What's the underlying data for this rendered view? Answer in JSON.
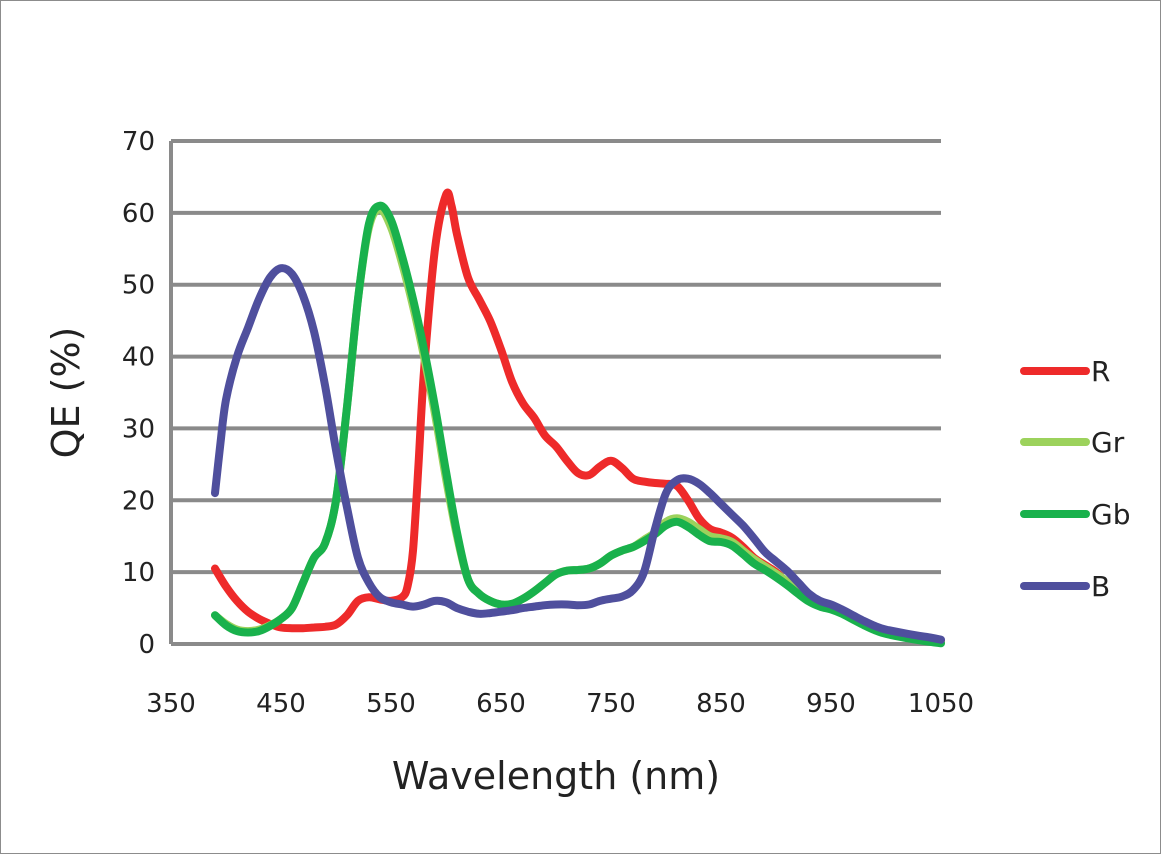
{
  "chart_data": {
    "type": "line",
    "title": "",
    "xlabel": "Wavelength (nm)",
    "ylabel": "QE (%)",
    "xlim": [
      350,
      1050
    ],
    "ylim": [
      0,
      70
    ],
    "x_ticks": [
      "350",
      "450",
      "550",
      "650",
      "750",
      "850",
      "950",
      "1050"
    ],
    "y_ticks": [
      "0",
      "10",
      "20",
      "30",
      "40",
      "50",
      "60",
      "70"
    ],
    "grid": "horizontal",
    "legend_position": "right",
    "series": [
      {
        "name": "R",
        "color": "#ee2a2a",
        "points": [
          [
            390,
            10.5
          ],
          [
            400,
            8
          ],
          [
            410,
            6
          ],
          [
            420,
            4.5
          ],
          [
            430,
            3.5
          ],
          [
            440,
            2.8
          ],
          [
            450,
            2.3
          ],
          [
            460,
            2.2
          ],
          [
            470,
            2.2
          ],
          [
            480,
            2.3
          ],
          [
            490,
            2.4
          ],
          [
            500,
            2.7
          ],
          [
            510,
            4
          ],
          [
            520,
            6
          ],
          [
            530,
            6.5
          ],
          [
            540,
            6.2
          ],
          [
            550,
            6
          ],
          [
            560,
            6.5
          ],
          [
            565,
            8
          ],
          [
            570,
            13
          ],
          [
            575,
            25
          ],
          [
            580,
            38
          ],
          [
            590,
            55
          ],
          [
            600,
            62.5
          ],
          [
            605,
            61
          ],
          [
            610,
            57
          ],
          [
            620,
            51
          ],
          [
            630,
            48
          ],
          [
            640,
            45
          ],
          [
            650,
            41
          ],
          [
            660,
            36.5
          ],
          [
            670,
            33.5
          ],
          [
            680,
            31.5
          ],
          [
            690,
            29
          ],
          [
            700,
            27.5
          ],
          [
            710,
            25.5
          ],
          [
            720,
            23.8
          ],
          [
            730,
            23.5
          ],
          [
            740,
            24.7
          ],
          [
            750,
            25.5
          ],
          [
            760,
            24.5
          ],
          [
            770,
            23
          ],
          [
            780,
            22.6
          ],
          [
            790,
            22.4
          ],
          [
            800,
            22.3
          ],
          [
            810,
            22
          ],
          [
            820,
            20
          ],
          [
            830,
            17.5
          ],
          [
            840,
            16
          ],
          [
            850,
            15.5
          ],
          [
            860,
            14.8
          ],
          [
            870,
            13.5
          ],
          [
            880,
            12
          ],
          [
            890,
            11
          ],
          [
            900,
            10
          ],
          [
            910,
            8.5
          ],
          [
            920,
            7.5
          ],
          [
            930,
            6.5
          ],
          [
            940,
            5.7
          ],
          [
            950,
            5.2
          ],
          [
            960,
            4.5
          ],
          [
            970,
            3.8
          ],
          [
            980,
            3
          ],
          [
            990,
            2.3
          ],
          [
            1000,
            1.8
          ],
          [
            1020,
            1.2
          ],
          [
            1040,
            0.8
          ],
          [
            1050,
            0.5
          ]
        ]
      },
      {
        "name": "Gr",
        "color": "#9cd25c",
        "points": [
          [
            390,
            4
          ],
          [
            400,
            2.8
          ],
          [
            410,
            2
          ],
          [
            420,
            1.8
          ],
          [
            430,
            2
          ],
          [
            440,
            2.6
          ],
          [
            450,
            3.5
          ],
          [
            460,
            5
          ],
          [
            470,
            8.5
          ],
          [
            480,
            12
          ],
          [
            490,
            14
          ],
          [
            500,
            20
          ],
          [
            510,
            33
          ],
          [
            520,
            48
          ],
          [
            530,
            58
          ],
          [
            540,
            60.5
          ],
          [
            550,
            58
          ],
          [
            560,
            53
          ],
          [
            570,
            47
          ],
          [
            580,
            40
          ],
          [
            590,
            32
          ],
          [
            600,
            23
          ],
          [
            610,
            15
          ],
          [
            620,
            9
          ],
          [
            630,
            7
          ],
          [
            640,
            6
          ],
          [
            650,
            5.5
          ],
          [
            660,
            5.6
          ],
          [
            670,
            6.3
          ],
          [
            680,
            7.3
          ],
          [
            690,
            8.5
          ],
          [
            700,
            9.7
          ],
          [
            710,
            10.2
          ],
          [
            720,
            10.3
          ],
          [
            730,
            10.5
          ],
          [
            740,
            11.2
          ],
          [
            750,
            12.3
          ],
          [
            760,
            13
          ],
          [
            770,
            13.5
          ],
          [
            780,
            14.5
          ],
          [
            790,
            15.5
          ],
          [
            800,
            17
          ],
          [
            810,
            17.5
          ],
          [
            820,
            17
          ],
          [
            830,
            16
          ],
          [
            840,
            15
          ],
          [
            850,
            14.7
          ],
          [
            860,
            14.2
          ],
          [
            870,
            13
          ],
          [
            880,
            11.8
          ],
          [
            890,
            10.8
          ],
          [
            900,
            9.8
          ],
          [
            910,
            8.7
          ],
          [
            920,
            7.5
          ],
          [
            930,
            6.2
          ],
          [
            940,
            5.5
          ],
          [
            950,
            5
          ],
          [
            960,
            4.4
          ],
          [
            970,
            3.6
          ],
          [
            980,
            2.7
          ],
          [
            990,
            2
          ],
          [
            1000,
            1.5
          ],
          [
            1020,
            0.9
          ],
          [
            1040,
            0.4
          ],
          [
            1050,
            0.2
          ]
        ]
      },
      {
        "name": "Gb",
        "color": "#19b14c",
        "points": [
          [
            390,
            4
          ],
          [
            400,
            2.6
          ],
          [
            410,
            1.8
          ],
          [
            420,
            1.6
          ],
          [
            430,
            1.8
          ],
          [
            440,
            2.5
          ],
          [
            450,
            3.5
          ],
          [
            460,
            5
          ],
          [
            470,
            8.5
          ],
          [
            480,
            12
          ],
          [
            490,
            14
          ],
          [
            500,
            20
          ],
          [
            510,
            33
          ],
          [
            520,
            48
          ],
          [
            530,
            58.5
          ],
          [
            540,
            61
          ],
          [
            550,
            59
          ],
          [
            560,
            54
          ],
          [
            570,
            48
          ],
          [
            580,
            41
          ],
          [
            590,
            33
          ],
          [
            600,
            24
          ],
          [
            610,
            15.5
          ],
          [
            620,
            9
          ],
          [
            630,
            7
          ],
          [
            640,
            6
          ],
          [
            650,
            5.5
          ],
          [
            660,
            5.6
          ],
          [
            670,
            6.3
          ],
          [
            680,
            7.3
          ],
          [
            690,
            8.5
          ],
          [
            700,
            9.7
          ],
          [
            710,
            10.2
          ],
          [
            720,
            10.3
          ],
          [
            730,
            10.5
          ],
          [
            740,
            11.2
          ],
          [
            750,
            12.3
          ],
          [
            760,
            13
          ],
          [
            770,
            13.5
          ],
          [
            780,
            14.3
          ],
          [
            790,
            15.3
          ],
          [
            800,
            16.5
          ],
          [
            810,
            17
          ],
          [
            820,
            16.3
          ],
          [
            830,
            15.2
          ],
          [
            840,
            14.3
          ],
          [
            850,
            14.2
          ],
          [
            860,
            13.7
          ],
          [
            870,
            12.5
          ],
          [
            880,
            11.2
          ],
          [
            890,
            10.3
          ],
          [
            900,
            9.3
          ],
          [
            910,
            8.2
          ],
          [
            920,
            7
          ],
          [
            930,
            5.9
          ],
          [
            940,
            5.2
          ],
          [
            950,
            4.8
          ],
          [
            960,
            4.2
          ],
          [
            970,
            3.4
          ],
          [
            980,
            2.6
          ],
          [
            990,
            1.9
          ],
          [
            1000,
            1.4
          ],
          [
            1020,
            0.8
          ],
          [
            1040,
            0.3
          ],
          [
            1050,
            0.1
          ]
        ]
      },
      {
        "name": "B",
        "color": "#4f4f9d",
        "points": [
          [
            390,
            21
          ],
          [
            395,
            28
          ],
          [
            400,
            34
          ],
          [
            410,
            40
          ],
          [
            420,
            44
          ],
          [
            430,
            48
          ],
          [
            440,
            51
          ],
          [
            450,
            52.3
          ],
          [
            460,
            51.5
          ],
          [
            470,
            48.5
          ],
          [
            480,
            43.5
          ],
          [
            490,
            36
          ],
          [
            500,
            27
          ],
          [
            510,
            19
          ],
          [
            520,
            12
          ],
          [
            530,
            8.5
          ],
          [
            540,
            6.5
          ],
          [
            550,
            5.8
          ],
          [
            560,
            5.5
          ],
          [
            570,
            5.2
          ],
          [
            580,
            5.5
          ],
          [
            590,
            6
          ],
          [
            600,
            5.8
          ],
          [
            610,
            5
          ],
          [
            620,
            4.5
          ],
          [
            630,
            4.2
          ],
          [
            640,
            4.3
          ],
          [
            650,
            4.5
          ],
          [
            660,
            4.7
          ],
          [
            670,
            5
          ],
          [
            680,
            5.2
          ],
          [
            690,
            5.4
          ],
          [
            700,
            5.5
          ],
          [
            710,
            5.5
          ],
          [
            720,
            5.4
          ],
          [
            730,
            5.5
          ],
          [
            740,
            6
          ],
          [
            750,
            6.3
          ],
          [
            760,
            6.6
          ],
          [
            770,
            7.5
          ],
          [
            780,
            10
          ],
          [
            790,
            16
          ],
          [
            800,
            21
          ],
          [
            810,
            22.8
          ],
          [
            820,
            23
          ],
          [
            830,
            22.3
          ],
          [
            840,
            21
          ],
          [
            850,
            19.5
          ],
          [
            860,
            18
          ],
          [
            870,
            16.5
          ],
          [
            880,
            14.7
          ],
          [
            890,
            12.8
          ],
          [
            900,
            11.5
          ],
          [
            910,
            10.2
          ],
          [
            920,
            8.6
          ],
          [
            930,
            7
          ],
          [
            940,
            6
          ],
          [
            950,
            5.5
          ],
          [
            960,
            4.8
          ],
          [
            970,
            4
          ],
          [
            980,
            3.2
          ],
          [
            990,
            2.5
          ],
          [
            1000,
            2
          ],
          [
            1020,
            1.4
          ],
          [
            1040,
            0.9
          ],
          [
            1050,
            0.6
          ]
        ]
      }
    ]
  }
}
